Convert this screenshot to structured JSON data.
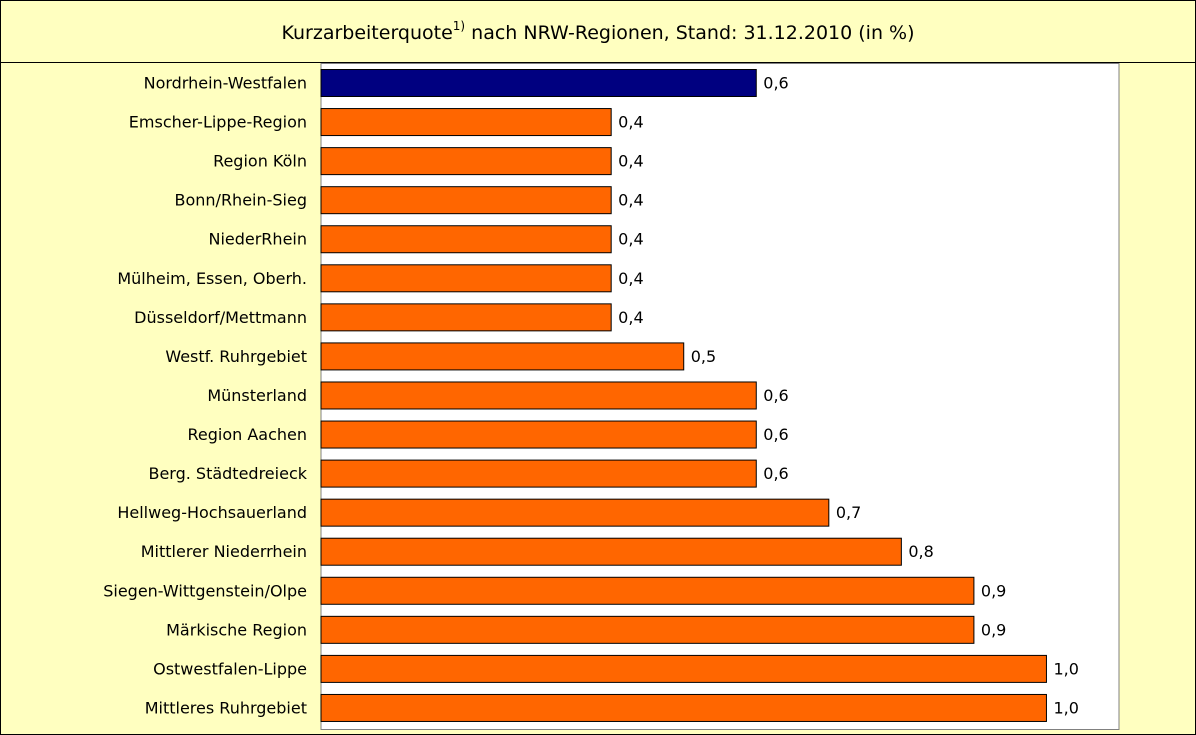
{
  "chart_data": {
    "type": "barh",
    "title": [
      "Kurzarbeiterquote",
      "1)",
      " nach NRW-Regionen, Stand: 31.12.2010 (in %)"
    ],
    "categories": [
      "Nordrhein-Westfalen",
      "Emscher-Lippe-Region",
      "Region Köln",
      "Bonn/Rhein-Sieg",
      "NiederRhein",
      "Mülheim, Essen, Oberh.",
      "Düsseldorf/Mettmann",
      "Westf. Ruhrgebiet",
      "Münsterland",
      "Region Aachen",
      "Berg. Städtedreieck",
      "Hellweg-Hochsauerland",
      "Mittlerer Niederrhein",
      "Siegen-Wittgenstein/Olpe",
      "Märkische Region",
      "Ostwestfalen-Lippe",
      "Mittleres Ruhrgebiet"
    ],
    "values": [
      0.6,
      0.4,
      0.4,
      0.4,
      0.4,
      0.4,
      0.4,
      0.5,
      0.6,
      0.6,
      0.6,
      0.7,
      0.8,
      0.9,
      0.9,
      1.0,
      1.0
    ],
    "value_labels": [
      "0,6",
      "0,4",
      "0,4",
      "0,4",
      "0,4",
      "0,4",
      "0,4",
      "0,5",
      "0,6",
      "0,6",
      "0,6",
      "0,7",
      "0,8",
      "0,9",
      "0,9",
      "1,0",
      "1,0"
    ],
    "colors": [
      "#000080",
      "#ff6600",
      "#ff6600",
      "#ff6600",
      "#ff6600",
      "#ff6600",
      "#ff6600",
      "#ff6600",
      "#ff6600",
      "#ff6600",
      "#ff6600",
      "#ff6600",
      "#ff6600",
      "#ff6600",
      "#ff6600",
      "#ff6600",
      "#ff6600"
    ],
    "xlim": [
      0,
      1.1
    ]
  }
}
